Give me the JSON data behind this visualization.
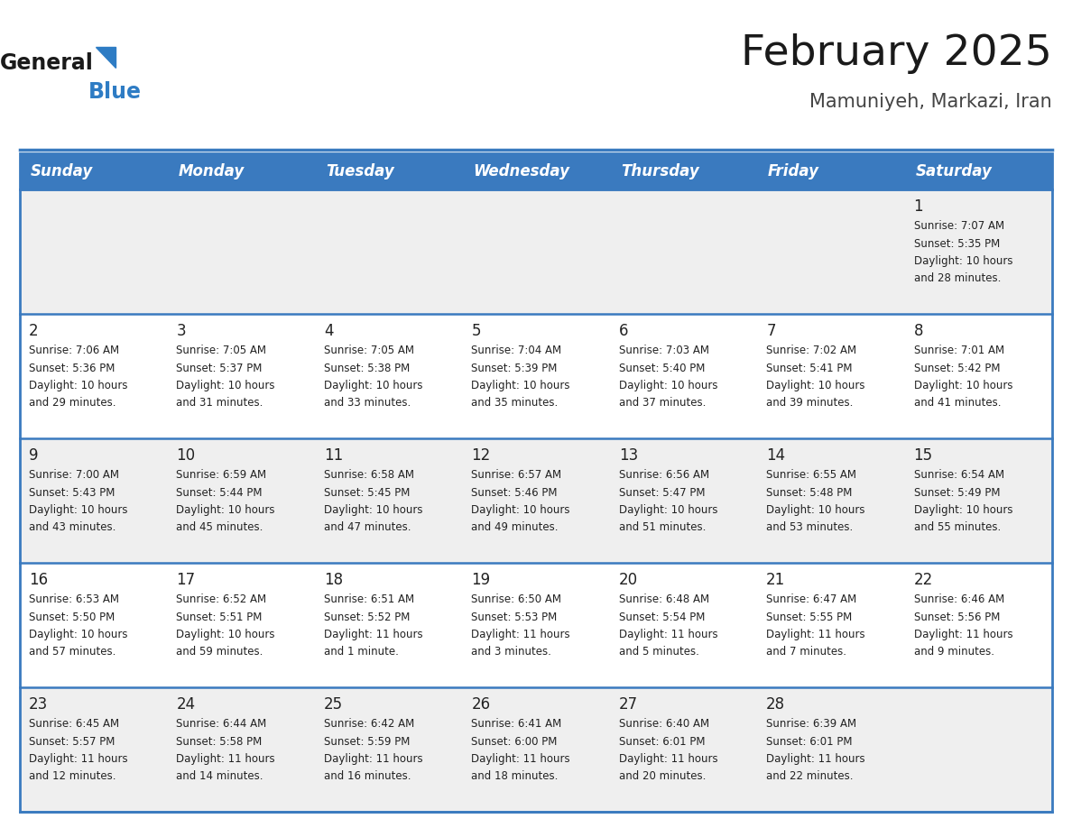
{
  "title": "February 2025",
  "subtitle": "Mamuniyeh, Markazi, Iran",
  "header_bg_color": "#3a7abf",
  "header_text_color": "#FFFFFF",
  "day_names": [
    "Sunday",
    "Monday",
    "Tuesday",
    "Wednesday",
    "Thursday",
    "Friday",
    "Saturday"
  ],
  "cell_bg_white": "#FFFFFF",
  "cell_bg_gray": "#EFEFEF",
  "border_color": "#3a7abf",
  "day_num_color": "#222222",
  "info_text_color": "#222222",
  "title_color": "#1a1a1a",
  "subtitle_color": "#444444",
  "logo_general_color": "#1a1a1a",
  "logo_blue_color": "#2E7CC4",
  "days_data": [
    {
      "day": 1,
      "col": 6,
      "row": 0,
      "sunrise": "7:07 AM",
      "sunset": "5:35 PM",
      "daylight": "10 hours",
      "daylight2": "and 28 minutes."
    },
    {
      "day": 2,
      "col": 0,
      "row": 1,
      "sunrise": "7:06 AM",
      "sunset": "5:36 PM",
      "daylight": "10 hours",
      "daylight2": "and 29 minutes."
    },
    {
      "day": 3,
      "col": 1,
      "row": 1,
      "sunrise": "7:05 AM",
      "sunset": "5:37 PM",
      "daylight": "10 hours",
      "daylight2": "and 31 minutes."
    },
    {
      "day": 4,
      "col": 2,
      "row": 1,
      "sunrise": "7:05 AM",
      "sunset": "5:38 PM",
      "daylight": "10 hours",
      "daylight2": "and 33 minutes."
    },
    {
      "day": 5,
      "col": 3,
      "row": 1,
      "sunrise": "7:04 AM",
      "sunset": "5:39 PM",
      "daylight": "10 hours",
      "daylight2": "and 35 minutes."
    },
    {
      "day": 6,
      "col": 4,
      "row": 1,
      "sunrise": "7:03 AM",
      "sunset": "5:40 PM",
      "daylight": "10 hours",
      "daylight2": "and 37 minutes."
    },
    {
      "day": 7,
      "col": 5,
      "row": 1,
      "sunrise": "7:02 AM",
      "sunset": "5:41 PM",
      "daylight": "10 hours",
      "daylight2": "and 39 minutes."
    },
    {
      "day": 8,
      "col": 6,
      "row": 1,
      "sunrise": "7:01 AM",
      "sunset": "5:42 PM",
      "daylight": "10 hours",
      "daylight2": "and 41 minutes."
    },
    {
      "day": 9,
      "col": 0,
      "row": 2,
      "sunrise": "7:00 AM",
      "sunset": "5:43 PM",
      "daylight": "10 hours",
      "daylight2": "and 43 minutes."
    },
    {
      "day": 10,
      "col": 1,
      "row": 2,
      "sunrise": "6:59 AM",
      "sunset": "5:44 PM",
      "daylight": "10 hours",
      "daylight2": "and 45 minutes."
    },
    {
      "day": 11,
      "col": 2,
      "row": 2,
      "sunrise": "6:58 AM",
      "sunset": "5:45 PM",
      "daylight": "10 hours",
      "daylight2": "and 47 minutes."
    },
    {
      "day": 12,
      "col": 3,
      "row": 2,
      "sunrise": "6:57 AM",
      "sunset": "5:46 PM",
      "daylight": "10 hours",
      "daylight2": "and 49 minutes."
    },
    {
      "day": 13,
      "col": 4,
      "row": 2,
      "sunrise": "6:56 AM",
      "sunset": "5:47 PM",
      "daylight": "10 hours",
      "daylight2": "and 51 minutes."
    },
    {
      "day": 14,
      "col": 5,
      "row": 2,
      "sunrise": "6:55 AM",
      "sunset": "5:48 PM",
      "daylight": "10 hours",
      "daylight2": "and 53 minutes."
    },
    {
      "day": 15,
      "col": 6,
      "row": 2,
      "sunrise": "6:54 AM",
      "sunset": "5:49 PM",
      "daylight": "10 hours",
      "daylight2": "and 55 minutes."
    },
    {
      "day": 16,
      "col": 0,
      "row": 3,
      "sunrise": "6:53 AM",
      "sunset": "5:50 PM",
      "daylight": "10 hours",
      "daylight2": "and 57 minutes."
    },
    {
      "day": 17,
      "col": 1,
      "row": 3,
      "sunrise": "6:52 AM",
      "sunset": "5:51 PM",
      "daylight": "10 hours",
      "daylight2": "and 59 minutes."
    },
    {
      "day": 18,
      "col": 2,
      "row": 3,
      "sunrise": "6:51 AM",
      "sunset": "5:52 PM",
      "daylight": "11 hours",
      "daylight2": "and 1 minute."
    },
    {
      "day": 19,
      "col": 3,
      "row": 3,
      "sunrise": "6:50 AM",
      "sunset": "5:53 PM",
      "daylight": "11 hours",
      "daylight2": "and 3 minutes."
    },
    {
      "day": 20,
      "col": 4,
      "row": 3,
      "sunrise": "6:48 AM",
      "sunset": "5:54 PM",
      "daylight": "11 hours",
      "daylight2": "and 5 minutes."
    },
    {
      "day": 21,
      "col": 5,
      "row": 3,
      "sunrise": "6:47 AM",
      "sunset": "5:55 PM",
      "daylight": "11 hours",
      "daylight2": "and 7 minutes."
    },
    {
      "day": 22,
      "col": 6,
      "row": 3,
      "sunrise": "6:46 AM",
      "sunset": "5:56 PM",
      "daylight": "11 hours",
      "daylight2": "and 9 minutes."
    },
    {
      "day": 23,
      "col": 0,
      "row": 4,
      "sunrise": "6:45 AM",
      "sunset": "5:57 PM",
      "daylight": "11 hours",
      "daylight2": "and 12 minutes."
    },
    {
      "day": 24,
      "col": 1,
      "row": 4,
      "sunrise": "6:44 AM",
      "sunset": "5:58 PM",
      "daylight": "11 hours",
      "daylight2": "and 14 minutes."
    },
    {
      "day": 25,
      "col": 2,
      "row": 4,
      "sunrise": "6:42 AM",
      "sunset": "5:59 PM",
      "daylight": "11 hours",
      "daylight2": "and 16 minutes."
    },
    {
      "day": 26,
      "col": 3,
      "row": 4,
      "sunrise": "6:41 AM",
      "sunset": "6:00 PM",
      "daylight": "11 hours",
      "daylight2": "and 18 minutes."
    },
    {
      "day": 27,
      "col": 4,
      "row": 4,
      "sunrise": "6:40 AM",
      "sunset": "6:01 PM",
      "daylight": "11 hours",
      "daylight2": "and 20 minutes."
    },
    {
      "day": 28,
      "col": 5,
      "row": 4,
      "sunrise": "6:39 AM",
      "sunset": "6:01 PM",
      "daylight": "11 hours",
      "daylight2": "and 22 minutes."
    }
  ],
  "num_rows": 5,
  "num_cols": 7,
  "fig_width": 11.88,
  "fig_height": 9.18,
  "dpi": 100
}
